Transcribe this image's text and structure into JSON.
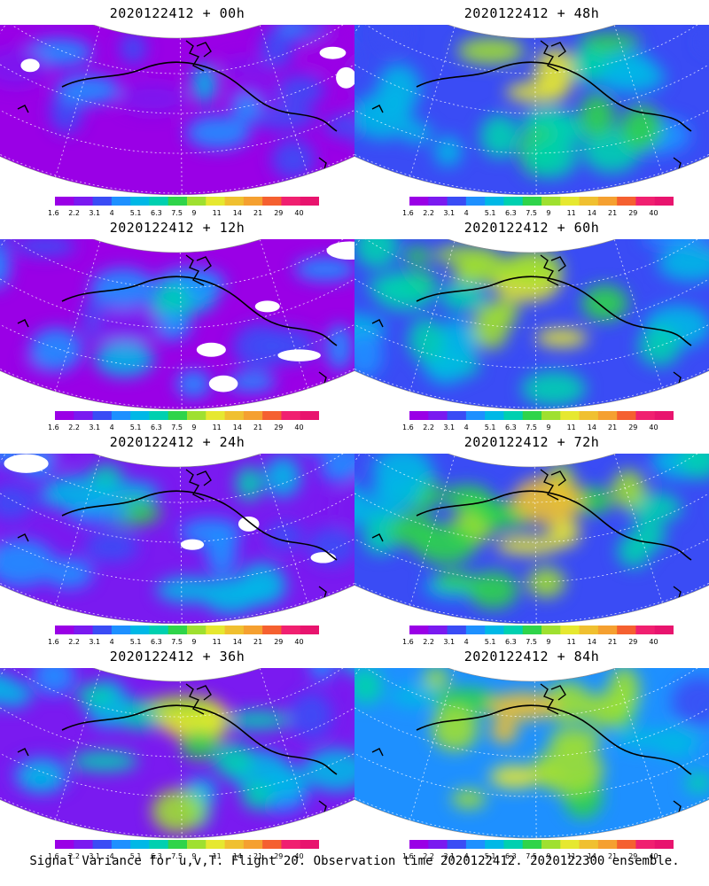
{
  "caption": "Signal Variance for u,v,T. Flight 20. Observation time 2020122412. 2020122300 ensemble.",
  "colorbar": {
    "labels": [
      "1.6",
      "2.2",
      "3.1",
      "4",
      "5.1",
      "6.3",
      "7.5",
      "9",
      "11",
      "14",
      "21",
      "29",
      "40"
    ],
    "colors": [
      "#9a00e6",
      "#7a1af0",
      "#3a4cf5",
      "#1e90ff",
      "#00b8e6",
      "#00d0b0",
      "#2fd44a",
      "#9fe030",
      "#e6e830",
      "#f0c030",
      "#f5a030",
      "#f56030",
      "#f02070",
      "#e8146e"
    ]
  },
  "chart_data": [
    {
      "type": "heatmap",
      "title": "2020122412 + 00h",
      "intensity": 0.22,
      "white_patches": true
    },
    {
      "type": "heatmap",
      "title": "2020122412 + 48h",
      "intensity": 0.62,
      "white_patches": false
    },
    {
      "type": "heatmap",
      "title": "2020122412 + 12h",
      "intensity": 0.3,
      "white_patches": true
    },
    {
      "type": "heatmap",
      "title": "2020122412 + 60h",
      "intensity": 0.66,
      "white_patches": false
    },
    {
      "type": "heatmap",
      "title": "2020122412 + 24h",
      "intensity": 0.42,
      "white_patches": true
    },
    {
      "type": "heatmap",
      "title": "2020122412 + 72h",
      "intensity": 0.72,
      "white_patches": false
    },
    {
      "type": "heatmap",
      "title": "2020122412 + 36h",
      "intensity": 0.55,
      "white_patches": false
    },
    {
      "type": "heatmap",
      "title": "2020122412 + 84h",
      "intensity": 0.78,
      "white_patches": false
    }
  ]
}
